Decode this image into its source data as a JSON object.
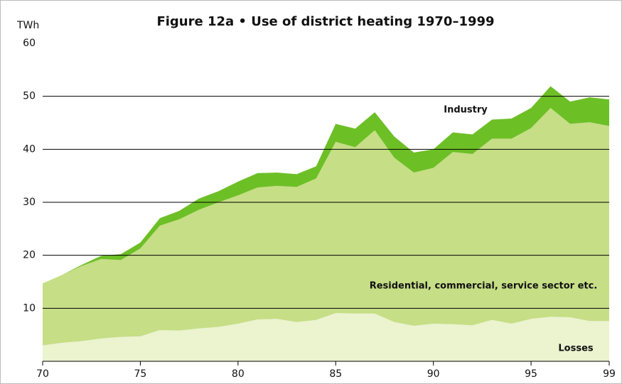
{
  "chart_data": {
    "type": "stacked_area",
    "title": "Figure 12a • Use of district heating 1970–1999",
    "y_label": "TWh",
    "x": [
      70,
      71,
      72,
      73,
      74,
      75,
      76,
      77,
      78,
      79,
      80,
      81,
      82,
      83,
      84,
      85,
      86,
      87,
      88,
      89,
      90,
      91,
      92,
      93,
      94,
      95,
      96,
      97,
      98,
      99
    ],
    "series": [
      {
        "name": "Losses",
        "color": "#ebf3cf",
        "values": [
          3.0,
          3.5,
          3.8,
          4.3,
          4.6,
          4.7,
          5.9,
          5.8,
          6.2,
          6.5,
          7.1,
          7.9,
          8.0,
          7.4,
          7.8,
          9.1,
          9.0,
          9.0,
          7.4,
          6.7,
          7.1,
          7.0,
          6.8,
          7.8,
          7.1,
          8.0,
          8.4,
          8.3,
          7.6,
          7.6
        ]
      },
      {
        "name": "Residential, commercial, service sector etc.",
        "color": "#c6de86",
        "values": [
          11.7,
          12.8,
          14.2,
          15.0,
          14.5,
          16.6,
          19.7,
          21.0,
          22.4,
          23.5,
          24.2,
          24.9,
          25.1,
          25.5,
          26.7,
          32.3,
          31.4,
          34.6,
          31.0,
          28.9,
          29.4,
          32.5,
          32.3,
          34.2,
          34.9,
          36.0,
          39.4,
          36.5,
          37.5,
          36.8
        ]
      },
      {
        "name": "Industry",
        "color": "#6dbf26",
        "values": [
          0,
          0,
          0.2,
          0.6,
          1.1,
          1.1,
          1.4,
          1.6,
          2.1,
          2.1,
          2.6,
          2.7,
          2.5,
          2.4,
          2.3,
          3.4,
          3.5,
          3.4,
          4.0,
          3.8,
          3.5,
          3.7,
          3.7,
          3.6,
          3.8,
          3.8,
          4.1,
          4.2,
          4.7,
          5.0
        ]
      }
    ],
    "xlim": [
      70,
      99
    ],
    "xticks": [
      70,
      75,
      80,
      85,
      90,
      95,
      99
    ],
    "ylim": [
      0,
      60
    ],
    "yticks": [
      10,
      20,
      30,
      40,
      50,
      60
    ],
    "grid": true
  }
}
